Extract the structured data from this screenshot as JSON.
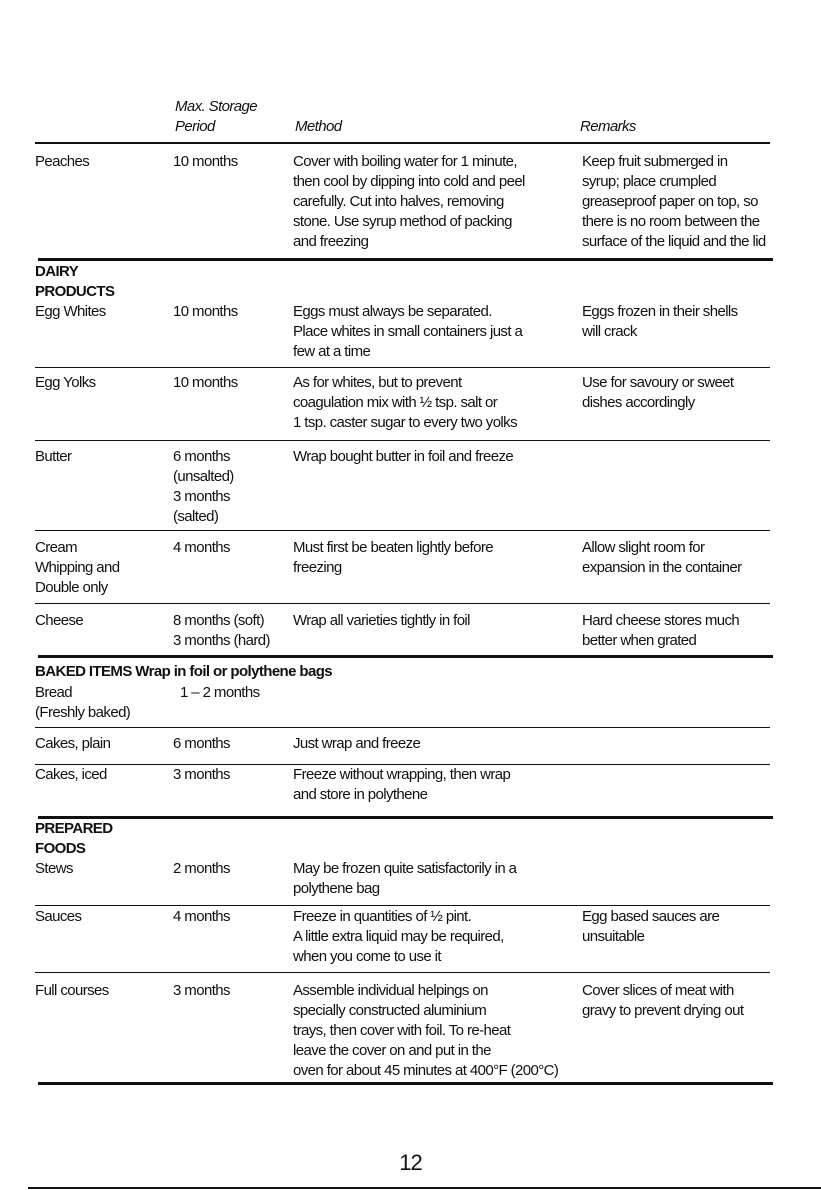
{
  "header": {
    "period": [
      "Max. Storage",
      "Period"
    ],
    "method": "Method",
    "remarks": "Remarks"
  },
  "rows": [
    {
      "kind": "item",
      "name": [
        "Peaches"
      ],
      "period": [
        "10 months"
      ],
      "method": [
        "Cover with boiling water for 1 minute,",
        "then cool by dipping into cold and peel",
        "carefully. Cut into halves, removing",
        "stone. Use syrup method of packing",
        "and freezing"
      ],
      "remarks": [
        "Keep fruit submerged in",
        "syrup; place crumpled",
        "greaseproof paper on top, so",
        "there is no room between the",
        "surface of the liquid and the lid"
      ]
    },
    {
      "kind": "section",
      "name": [
        "DAIRY",
        "PRODUCTS"
      ]
    },
    {
      "kind": "item",
      "name": [
        "Egg Whites"
      ],
      "period": [
        "10 months"
      ],
      "method": [
        "Eggs must always be separated.",
        "Place whites in small containers just a",
        "few at a time"
      ],
      "remarks": [
        "Eggs frozen in their shells",
        "will crack"
      ]
    },
    {
      "kind": "item",
      "name": [
        "Egg Yolks"
      ],
      "period": [
        "10 months"
      ],
      "method": [
        "As for whites, but to prevent",
        "coagulation mix with ½ tsp. salt or",
        "1 tsp. caster sugar to every two yolks"
      ],
      "remarks": [
        "Use for savoury or sweet",
        "dishes accordingly"
      ]
    },
    {
      "kind": "item",
      "name": [
        "Butter"
      ],
      "period": [
        "6 months",
        "(unsalted)",
        "3 months",
        "(salted)"
      ],
      "method": [
        "Wrap bought butter in foil and freeze"
      ],
      "remarks": []
    },
    {
      "kind": "item",
      "name": [
        "Cream",
        "Whipping and",
        "Double only"
      ],
      "period": [
        "4 months"
      ],
      "method": [
        "Must first be beaten lightly before",
        "freezing"
      ],
      "remarks": [
        "Allow slight room for",
        "expansion in the container"
      ]
    },
    {
      "kind": "item",
      "name": [
        "Cheese"
      ],
      "period": [
        "8 months (soft)",
        "3 months (hard)"
      ],
      "method": [
        "Wrap all varieties tightly in foil"
      ],
      "remarks": [
        "Hard cheese stores much",
        "better when grated"
      ]
    },
    {
      "kind": "section",
      "name": [
        "BAKED ITEMS Wrap in foil or polythene bags"
      ]
    },
    {
      "kind": "item",
      "name": [
        "Bread",
        "(Freshly baked)"
      ],
      "period": [
        "1 – 2 months"
      ],
      "method": [],
      "remarks": []
    },
    {
      "kind": "item",
      "name": [
        "Cakes, plain"
      ],
      "period": [
        "6 months"
      ],
      "method": [
        "Just wrap and freeze"
      ],
      "remarks": []
    },
    {
      "kind": "item",
      "name": [
        "Cakes, iced"
      ],
      "period": [
        "3 months"
      ],
      "method": [
        "Freeze without wrapping, then wrap",
        "and store in polythene"
      ],
      "remarks": []
    },
    {
      "kind": "section",
      "name": [
        "PREPARED",
        "FOODS"
      ]
    },
    {
      "kind": "item",
      "name": [
        "Stews"
      ],
      "period": [
        "2 months"
      ],
      "method": [
        "May be frozen quite satisfactorily in a",
        "polythene bag"
      ],
      "remarks": []
    },
    {
      "kind": "item",
      "name": [
        "Sauces"
      ],
      "period": [
        "4 months"
      ],
      "method": [
        "Freeze in quantities of ½ pint.",
        "A little extra liquid may be required,",
        "when you come to use it"
      ],
      "remarks": [
        "Egg based sauces are",
        "unsuitable"
      ]
    },
    {
      "kind": "item",
      "name": [
        "Full courses"
      ],
      "period": [
        "3 months"
      ],
      "method": [
        "Assemble individual helpings on",
        "specially constructed aluminium",
        "trays, then cover with foil. To re-heat",
        "leave the cover on and put in the",
        "oven for about 45 minutes at 400°F (200°C)"
      ],
      "remarks": [
        "Cover slices of meat with",
        "gravy to prevent drying out"
      ]
    }
  ],
  "page_number": "12"
}
